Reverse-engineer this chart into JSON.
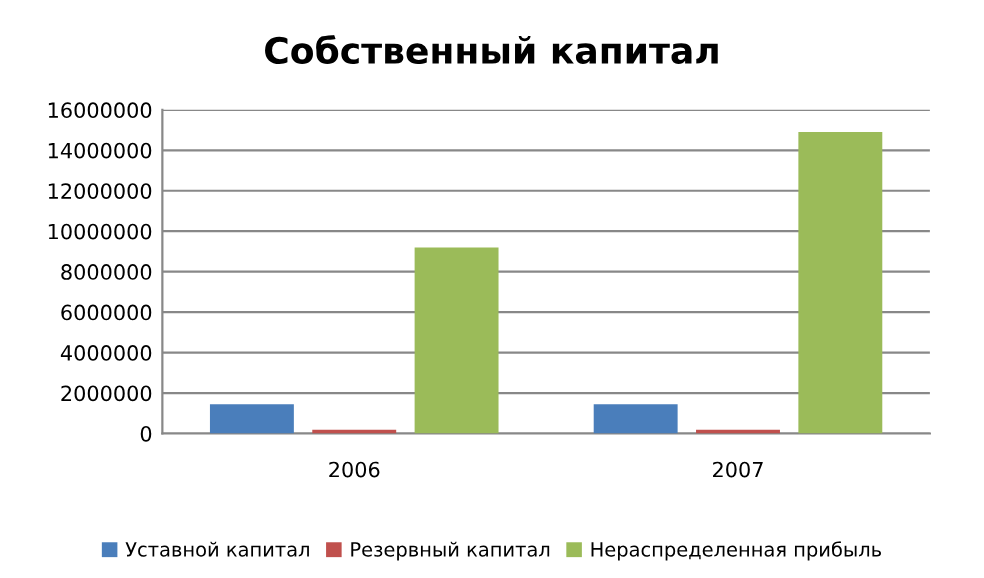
{
  "chart_data": {
    "type": "bar",
    "title": "Собственный капитал",
    "categories": [
      "2006",
      "2007"
    ],
    "series": [
      {
        "name": "Уставной капитал",
        "color": "#4a7ebb",
        "values": [
          1450000,
          1450000
        ]
      },
      {
        "name": "Резервный капитал",
        "color": "#c0504d",
        "values": [
          180000,
          180000
        ]
      },
      {
        "name": "Нераспределенная прибыль",
        "color": "#9bbb59",
        "values": [
          9200000,
          14900000
        ]
      }
    ],
    "ylim": [
      0,
      16000000
    ],
    "yticks": [
      0,
      2000000,
      4000000,
      6000000,
      8000000,
      10000000,
      12000000,
      14000000,
      16000000
    ],
    "grid": "y",
    "legend": "bottom"
  }
}
